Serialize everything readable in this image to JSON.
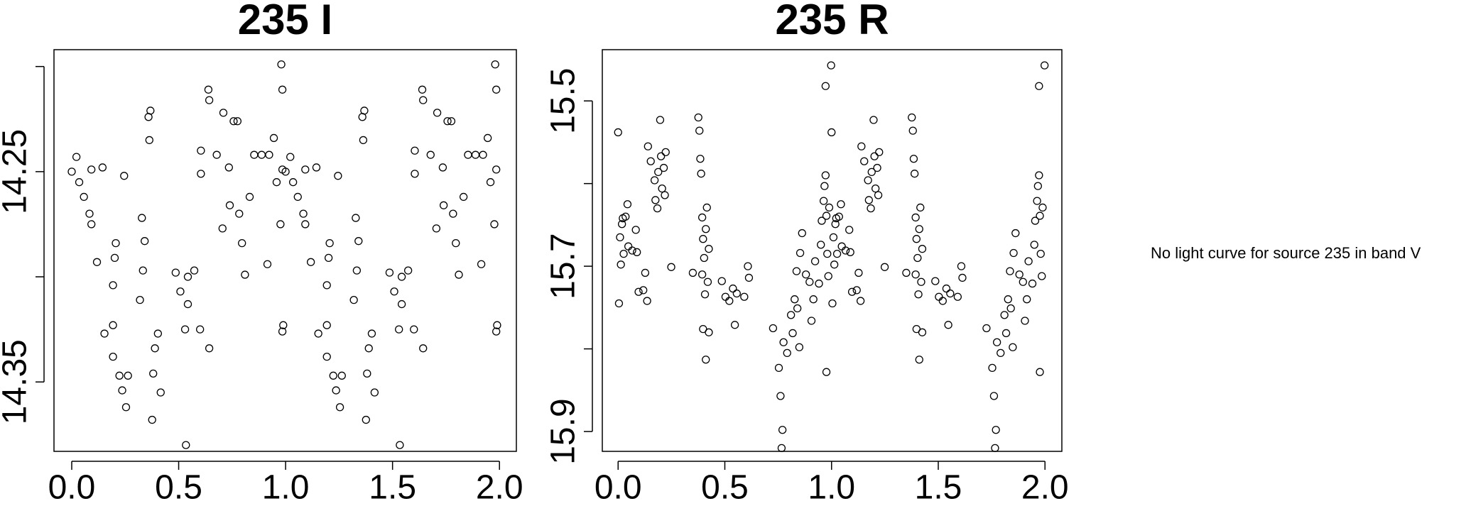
{
  "chart_data": [
    {
      "type": "scatter",
      "title": "235 I",
      "color": "#000000",
      "y_reversed": true,
      "xlim": [
        -0.083,
        2.079
      ],
      "ylim": [
        14.192,
        14.383
      ],
      "xticks": [
        {
          "value": 0,
          "label": "0.0"
        },
        {
          "value": 0.5,
          "label": "0.5"
        },
        {
          "value": 1,
          "label": "1.0"
        },
        {
          "value": 1.5,
          "label": "1.5"
        },
        {
          "value": 2,
          "label": "2.0"
        }
      ],
      "yticks": [
        14.25,
        14.35
      ],
      "yticks_minor": [
        14.2,
        14.3
      ],
      "x": [
        0.0,
        0.022,
        0.035,
        0.057,
        0.083,
        0.092,
        0.092,
        0.118,
        0.144,
        0.153,
        0.193,
        0.201,
        0.206,
        0.193,
        0.193,
        0.223,
        0.236,
        0.254,
        0.245,
        0.263,
        0.319,
        0.328,
        0.333,
        0.341,
        0.359,
        0.368,
        0.363,
        0.381,
        0.389,
        0.403,
        0.416,
        0.376,
        0.486,
        0.508,
        0.53,
        0.543,
        0.543,
        0.534,
        0.573,
        0.6,
        0.604,
        0.604,
        0.639,
        0.643,
        0.643,
        0.678,
        0.705,
        0.709,
        0.735,
        0.757,
        0.775,
        0.783,
        0.796,
        0.81,
        0.832,
        0.853,
        0.888,
        0.915,
        0.923,
        0.945,
        0.958,
        0.976,
        0.98,
        0.985,
        0.985,
        0.989,
        0.985,
        0.739,
        1.0,
        1.022,
        1.035,
        1.057,
        1.083,
        1.092,
        1.092,
        1.118,
        1.144,
        1.153,
        1.193,
        1.201,
        1.206,
        1.193,
        1.193,
        1.223,
        1.236,
        1.254,
        1.245,
        1.263,
        1.319,
        1.328,
        1.333,
        1.341,
        1.359,
        1.368,
        1.363,
        1.381,
        1.389,
        1.403,
        1.416,
        1.376,
        1.486,
        1.508,
        1.53,
        1.543,
        1.543,
        1.534,
        1.573,
        1.6,
        1.604,
        1.604,
        1.639,
        1.643,
        1.643,
        1.678,
        1.705,
        1.709,
        1.735,
        1.757,
        1.775,
        1.783,
        1.796,
        1.81,
        1.832,
        1.853,
        1.888,
        1.915,
        1.923,
        1.945,
        1.958,
        1.976,
        1.98,
        1.985,
        1.985,
        1.989,
        1.985,
        1.739
      ],
      "y": [
        14.25,
        14.243,
        14.255,
        14.262,
        14.27,
        14.275,
        14.249,
        14.293,
        14.248,
        14.327,
        14.304,
        14.291,
        14.284,
        14.323,
        14.338,
        14.347,
        14.354,
        14.362,
        14.252,
        14.347,
        14.311,
        14.272,
        14.297,
        14.283,
        14.224,
        14.221,
        14.235,
        14.346,
        14.334,
        14.327,
        14.355,
        14.368,
        14.298,
        14.307,
        14.325,
        14.3,
        14.313,
        14.38,
        14.297,
        14.325,
        14.24,
        14.251,
        14.211,
        14.216,
        14.334,
        14.242,
        14.277,
        14.222,
        14.248,
        14.226,
        14.226,
        14.27,
        14.284,
        14.299,
        14.262,
        14.242,
        14.242,
        14.294,
        14.242,
        14.234,
        14.255,
        14.275,
        14.199,
        14.211,
        14.249,
        14.323,
        14.326,
        14.266,
        14.25,
        14.243,
        14.255,
        14.262,
        14.27,
        14.275,
        14.249,
        14.293,
        14.248,
        14.327,
        14.304,
        14.291,
        14.284,
        14.323,
        14.338,
        14.347,
        14.354,
        14.362,
        14.252,
        14.347,
        14.311,
        14.272,
        14.297,
        14.283,
        14.224,
        14.221,
        14.235,
        14.346,
        14.334,
        14.327,
        14.355,
        14.368,
        14.298,
        14.307,
        14.325,
        14.3,
        14.313,
        14.38,
        14.297,
        14.325,
        14.24,
        14.251,
        14.211,
        14.216,
        14.334,
        14.242,
        14.277,
        14.222,
        14.248,
        14.226,
        14.226,
        14.27,
        14.284,
        14.299,
        14.262,
        14.242,
        14.242,
        14.294,
        14.242,
        14.234,
        14.255,
        14.275,
        14.199,
        14.211,
        14.249,
        14.323,
        14.326,
        14.266
      ]
    },
    {
      "type": "scatter",
      "title": "235 R",
      "color": "#000000",
      "y_reversed": true,
      "xlim": [
        -0.074,
        2.079
      ],
      "ylim": [
        15.438,
        15.924
      ],
      "xticks": [
        {
          "value": 0,
          "label": "0.0"
        },
        {
          "value": 0.5,
          "label": "0.5"
        },
        {
          "value": 1,
          "label": "1.0"
        },
        {
          "value": 1.5,
          "label": "1.5"
        },
        {
          "value": 2,
          "label": "2.0"
        }
      ],
      "yticks": [
        15.5,
        15.7,
        15.9
      ],
      "yticks_minor": [
        15.6,
        15.8
      ],
      "x": [
        0.0,
        0.009,
        0.013,
        0.018,
        0.004,
        0.022,
        0.026,
        0.035,
        0.044,
        0.048,
        0.066,
        0.083,
        0.088,
        0.096,
        0.118,
        0.127,
        0.136,
        0.14,
        0.153,
        0.171,
        0.175,
        0.184,
        0.188,
        0.197,
        0.201,
        0.206,
        0.214,
        0.219,
        0.223,
        0.249,
        0.376,
        0.381,
        0.385,
        0.389,
        0.394,
        0.398,
        0.403,
        0.394,
        0.407,
        0.398,
        0.411,
        0.416,
        0.42,
        0.425,
        0.35,
        0.411,
        0.425,
        0.486,
        0.503,
        0.521,
        0.538,
        0.547,
        0.556,
        0.591,
        0.608,
        0.613,
        0.726,
        0.753,
        0.775,
        0.761,
        0.77,
        0.766,
        0.792,
        0.81,
        0.818,
        0.827,
        0.836,
        0.84,
        0.849,
        0.853,
        0.862,
        0.88,
        0.897,
        0.906,
        0.915,
        0.923,
        0.941,
        0.95,
        0.954,
        0.963,
        0.967,
        0.972,
        0.976,
        0.98,
        0.985,
        0.989,
        0.972,
        0.998,
        0.976,
        1.0,
        1.009,
        1.013,
        1.018,
        1.004,
        1.022,
        1.026,
        1.035,
        1.044,
        1.048,
        1.066,
        1.083,
        1.088,
        1.096,
        1.118,
        1.127,
        1.136,
        1.14,
        1.153,
        1.171,
        1.175,
        1.184,
        1.188,
        1.197,
        1.201,
        1.206,
        1.214,
        1.219,
        1.223,
        1.249,
        1.376,
        1.381,
        1.385,
        1.389,
        1.394,
        1.398,
        1.403,
        1.394,
        1.407,
        1.398,
        1.411,
        1.416,
        1.42,
        1.425,
        1.35,
        1.411,
        1.425,
        1.486,
        1.503,
        1.521,
        1.538,
        1.547,
        1.556,
        1.591,
        1.608,
        1.613,
        1.726,
        1.753,
        1.775,
        1.761,
        1.77,
        1.766,
        1.792,
        1.81,
        1.818,
        1.827,
        1.836,
        1.84,
        1.849,
        1.853,
        1.862,
        1.88,
        1.897,
        1.906,
        1.915,
        1.923,
        1.941,
        1.95,
        1.954,
        1.963,
        1.967,
        1.972,
        1.976,
        1.98,
        1.985,
        1.989,
        1.972,
        1.998,
        1.976
      ],
      "y": [
        15.538,
        15.665,
        15.698,
        15.649,
        15.745,
        15.642,
        15.685,
        15.64,
        15.625,
        15.676,
        15.681,
        15.656,
        15.683,
        15.731,
        15.729,
        15.708,
        15.742,
        15.555,
        15.573,
        15.596,
        15.62,
        15.63,
        15.586,
        15.523,
        15.567,
        15.606,
        15.581,
        15.614,
        15.562,
        15.701,
        15.52,
        15.536,
        15.57,
        15.588,
        15.641,
        15.667,
        15.69,
        15.71,
        15.734,
        15.776,
        15.813,
        15.629,
        15.719,
        15.679,
        15.708,
        15.655,
        15.78,
        15.718,
        15.737,
        15.742,
        15.727,
        15.771,
        15.733,
        15.737,
        15.7,
        15.714,
        15.775,
        15.823,
        15.792,
        15.857,
        15.898,
        15.92,
        15.805,
        15.759,
        15.781,
        15.74,
        15.706,
        15.751,
        15.798,
        15.684,
        15.66,
        15.71,
        15.719,
        15.766,
        15.74,
        15.694,
        15.721,
        15.674,
        15.645,
        15.621,
        15.603,
        15.59,
        15.639,
        15.685,
        15.712,
        15.629,
        15.482,
        15.457,
        15.828,
        15.538,
        15.665,
        15.698,
        15.649,
        15.745,
        15.642,
        15.685,
        15.64,
        15.625,
        15.676,
        15.681,
        15.656,
        15.683,
        15.731,
        15.729,
        15.708,
        15.742,
        15.555,
        15.573,
        15.596,
        15.62,
        15.63,
        15.586,
        15.523,
        15.567,
        15.606,
        15.581,
        15.614,
        15.562,
        15.701,
        15.52,
        15.536,
        15.57,
        15.588,
        15.641,
        15.667,
        15.69,
        15.71,
        15.734,
        15.776,
        15.813,
        15.629,
        15.719,
        15.679,
        15.708,
        15.655,
        15.78,
        15.718,
        15.737,
        15.742,
        15.727,
        15.771,
        15.733,
        15.737,
        15.7,
        15.714,
        15.775,
        15.823,
        15.792,
        15.857,
        15.898,
        15.92,
        15.805,
        15.759,
        15.781,
        15.74,
        15.706,
        15.751,
        15.798,
        15.684,
        15.66,
        15.71,
        15.719,
        15.766,
        15.74,
        15.694,
        15.721,
        15.674,
        15.645,
        15.621,
        15.603,
        15.59,
        15.639,
        15.685,
        15.712,
        15.629,
        15.482,
        15.457,
        15.828
      ]
    }
  ],
  "note": "No light curve for source 235 in band V"
}
